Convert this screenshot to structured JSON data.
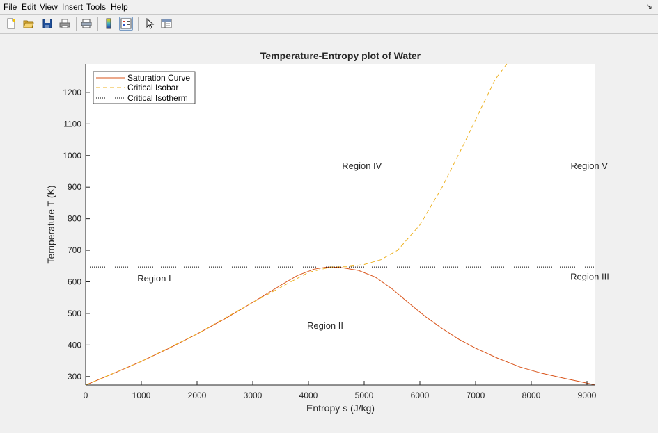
{
  "menu": [
    "File",
    "Edit",
    "View",
    "Insert",
    "Tools",
    "Help"
  ],
  "menu_corner_icon": "dock-arrow-icon",
  "toolbar": [
    {
      "name": "new-figure-icon",
      "active": false
    },
    {
      "name": "open-file-icon",
      "active": false
    },
    {
      "name": "save-icon",
      "active": false
    },
    {
      "name": "print-icon",
      "active": false
    },
    {
      "name": "print-preview-icon",
      "active": false
    },
    {
      "name": "colorbar-icon",
      "active": false
    },
    {
      "name": "legend-icon",
      "active": true
    },
    {
      "name": "edit-plot-icon",
      "active": false
    },
    {
      "name": "property-editor-icon",
      "active": false
    }
  ],
  "colors": {
    "saturation": "#d95319",
    "isobar": "#edb120",
    "isotherm": "#000000"
  },
  "chart_data": {
    "type": "line",
    "title": "Temperature-Entropy plot of Water",
    "xlabel": "Entropy s (J/kg)",
    "ylabel": "Temperature T (K)",
    "xlim": [
      0,
      9150
    ],
    "ylim": [
      273.16,
      1290
    ],
    "xticks": [
      0,
      1000,
      2000,
      3000,
      4000,
      5000,
      6000,
      7000,
      8000,
      9000
    ],
    "yticks": [
      300,
      400,
      500,
      600,
      700,
      800,
      900,
      1000,
      1100,
      1200
    ],
    "grid": false,
    "legend_position": "top-left",
    "series": [
      {
        "name": "Saturation Curve",
        "style": "solid",
        "x": [
          0,
          500,
          1000,
          1500,
          2000,
          2500,
          3000,
          3500,
          3800,
          4100,
          4300,
          4410,
          4600,
          4900,
          5200,
          5500,
          5800,
          6100,
          6400,
          6700,
          7000,
          7400,
          7800,
          8200,
          8600,
          9000,
          9150
        ],
        "y": [
          273.16,
          310,
          348,
          390,
          435,
          483,
          535,
          589,
          620,
          640,
          646,
          647.1,
          645,
          636,
          615,
          578,
          533,
          490,
          452,
          418,
          390,
          358,
          330,
          310,
          294,
          279,
          273.16
        ]
      },
      {
        "name": "Critical Isobar",
        "style": "dashed",
        "x": [
          0,
          1000,
          2000,
          3000,
          4000,
          4410,
          4700,
          5000,
          5300,
          5600,
          6000,
          6400,
          6800,
          7100,
          7350,
          7560
        ],
        "y": [
          273.16,
          348,
          435,
          535,
          630,
          647.1,
          648,
          655,
          670,
          700,
          780,
          900,
          1040,
          1150,
          1240,
          1290
        ]
      },
      {
        "name": "Critical Isotherm",
        "style": "dotted",
        "x": [
          0,
          9150
        ],
        "y": [
          647.1,
          647.1
        ]
      }
    ],
    "annotations": [
      {
        "text": "Region I",
        "x": 1230,
        "y": 610
      },
      {
        "text": "Region II",
        "x": 4300,
        "y": 460
      },
      {
        "text": "Region III",
        "x": 9050,
        "y": 615
      },
      {
        "text": "Region IV",
        "x": 4960,
        "y": 967
      },
      {
        "text": "Region V",
        "x": 9040,
        "y": 967
      }
    ]
  }
}
